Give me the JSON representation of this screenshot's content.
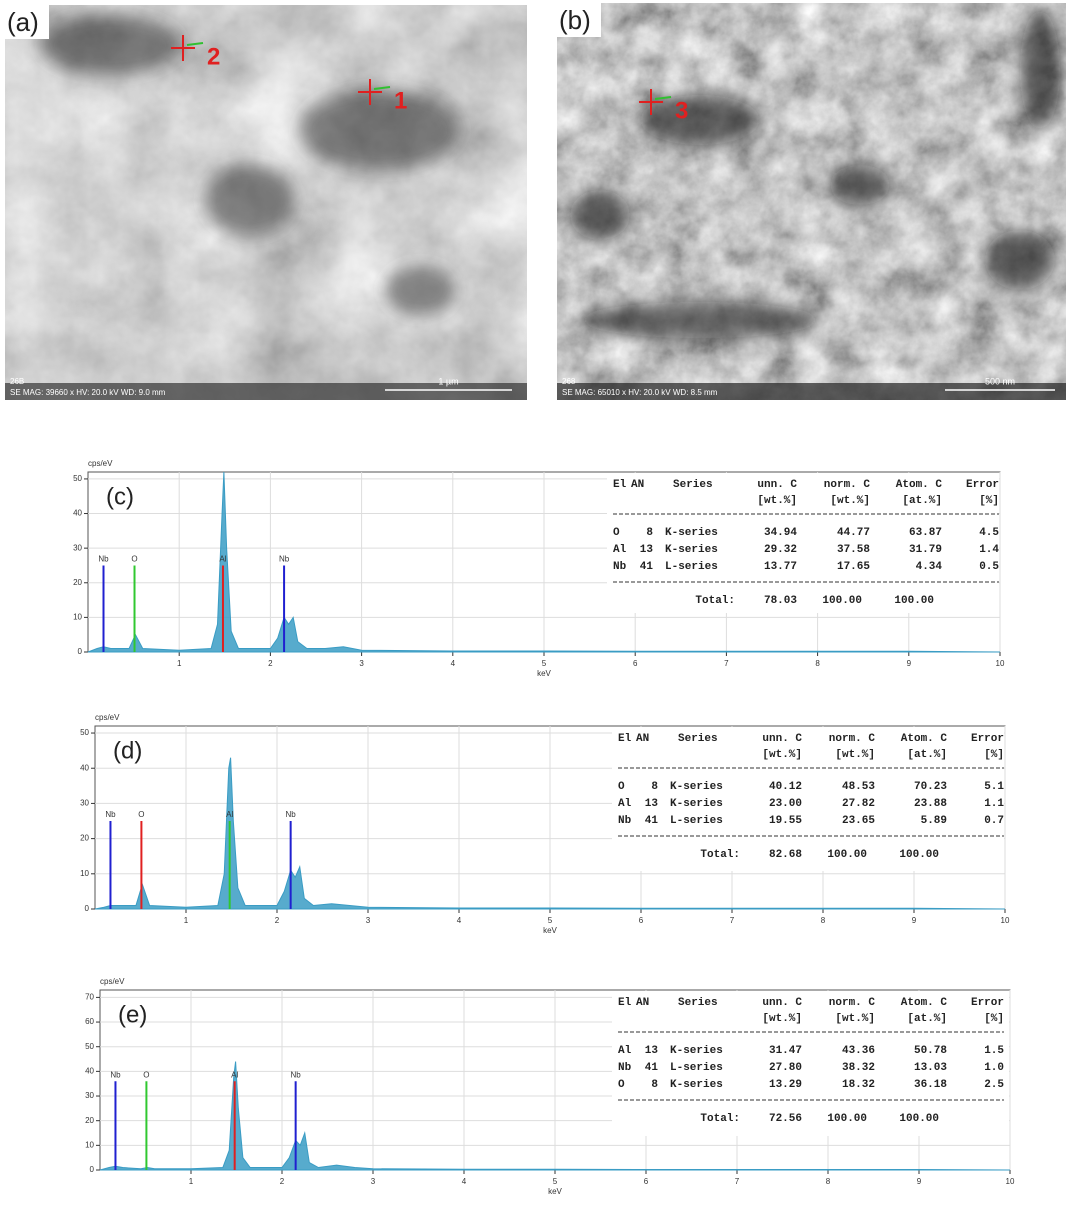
{
  "images": [
    {
      "label": "(a)",
      "points": [
        "2",
        "1"
      ],
      "scale": "1 µm",
      "code": "26B",
      "info": "SE MAG: 39660 x HV: 20.0 kV WD: 9.0 mm"
    },
    {
      "label": "(b)",
      "points": [
        "3"
      ],
      "scale": "500 nm",
      "code": "268",
      "info": "SE MAG: 65010 x HV: 20.0 kV WD: 8.5 mm"
    }
  ],
  "chart_data": [
    {
      "type": "spectrum",
      "label": "(c)",
      "y_label": "cps/eV",
      "x_label": "keV",
      "color": "#3a9cc4",
      "xlim": [
        0,
        10
      ],
      "xticks": [
        1,
        2,
        3,
        4,
        5,
        6,
        7,
        8,
        9,
        10
      ],
      "ylim": [
        0,
        52
      ],
      "yticks": [
        0,
        10,
        20,
        30,
        40,
        50
      ],
      "grid": true,
      "x": [
        0,
        0.1,
        0.17,
        0.25,
        0.45,
        0.52,
        0.6,
        1.0,
        1.35,
        1.42,
        1.47,
        1.49,
        1.52,
        1.57,
        1.65,
        2.0,
        2.08,
        2.15,
        2.2,
        2.25,
        2.3,
        2.4,
        2.6,
        2.8,
        3.0,
        4,
        5,
        6,
        7,
        8,
        9,
        10
      ],
      "values": [
        0,
        1,
        1.5,
        1,
        1,
        5,
        1,
        0.5,
        1,
        8,
        40,
        52,
        30,
        6,
        1,
        1,
        4,
        10,
        8,
        10,
        3,
        1,
        1,
        1.5,
        0.5,
        0.3,
        0.3,
        0.2,
        0.2,
        0.2,
        0.2,
        0
      ],
      "markers": [
        {
          "label": "Nb",
          "x": 0.17,
          "value": 25,
          "color": "#2020d0"
        },
        {
          "label": "O",
          "x": 0.51,
          "value": 25,
          "color": "#30c830"
        },
        {
          "label": "Al",
          "x": 1.48,
          "value": 25,
          "color": "#e02020"
        },
        {
          "label": "Nb",
          "x": 2.15,
          "value": 25,
          "color": "#2020d0"
        }
      ],
      "table": {
        "header": [
          "El",
          "AN",
          "Series",
          "unn. C",
          "norm. C",
          "Atom. C",
          "Error"
        ],
        "units": [
          "[wt.%]",
          "[wt.%]",
          "[at.%]",
          "[%]"
        ],
        "rows": [
          [
            "O",
            "8",
            "K-series",
            "34.94",
            "44.77",
            "63.87",
            "4.5"
          ],
          [
            "Al",
            "13",
            "K-series",
            "29.32",
            "37.58",
            "31.79",
            "1.4"
          ],
          [
            "Nb",
            "41",
            "L-series",
            "13.77",
            "17.65",
            "4.34",
            "0.5"
          ]
        ],
        "total_label": "Total:",
        "total": [
          "78.03",
          "100.00",
          "100.00"
        ]
      }
    },
    {
      "type": "spectrum",
      "label": "(d)",
      "y_label": "cps/eV",
      "x_label": "keV",
      "color": "#3a9cc4",
      "xlim": [
        0,
        10
      ],
      "xticks": [
        1,
        2,
        3,
        4,
        5,
        6,
        7,
        8,
        9,
        10
      ],
      "ylim": [
        0,
        52
      ],
      "yticks": [
        0,
        10,
        20,
        30,
        40,
        50
      ],
      "grid": true,
      "x": [
        0,
        0.1,
        0.17,
        0.25,
        0.45,
        0.52,
        0.6,
        1.0,
        1.35,
        1.42,
        1.47,
        1.49,
        1.52,
        1.57,
        1.65,
        2.0,
        2.08,
        2.15,
        2.2,
        2.25,
        2.3,
        2.4,
        2.6,
        2.8,
        3.0,
        4,
        5,
        6,
        7,
        8,
        9,
        10
      ],
      "values": [
        0,
        0.5,
        1,
        1,
        1,
        7,
        1,
        0.5,
        1,
        10,
        40,
        43,
        25,
        6,
        1,
        1,
        5,
        11,
        9,
        12,
        3,
        1,
        1.5,
        1,
        0.5,
        0.3,
        0.3,
        0.2,
        0.2,
        0.2,
        0.2,
        0
      ],
      "markers": [
        {
          "label": "Nb",
          "x": 0.17,
          "value": 25,
          "color": "#2020d0"
        },
        {
          "label": "O",
          "x": 0.51,
          "value": 25,
          "color": "#e02020"
        },
        {
          "label": "Al",
          "x": 1.48,
          "value": 25,
          "color": "#30c830"
        },
        {
          "label": "Nb",
          "x": 2.15,
          "value": 25,
          "color": "#2020d0"
        }
      ],
      "table": {
        "header": [
          "El",
          "AN",
          "Series",
          "unn. C",
          "norm. C",
          "Atom. C",
          "Error"
        ],
        "units": [
          "[wt.%]",
          "[wt.%]",
          "[at.%]",
          "[%]"
        ],
        "rows": [
          [
            "O",
            "8",
            "K-series",
            "40.12",
            "48.53",
            "70.23",
            "5.1"
          ],
          [
            "Al",
            "13",
            "K-series",
            "23.00",
            "27.82",
            "23.88",
            "1.1"
          ],
          [
            "Nb",
            "41",
            "L-series",
            "19.55",
            "23.65",
            "5.89",
            "0.7"
          ]
        ],
        "total_label": "Total:",
        "total": [
          "82.68",
          "100.00",
          "100.00"
        ]
      }
    },
    {
      "type": "spectrum",
      "label": "(e)",
      "y_label": "cps/eV",
      "x_label": "keV",
      "color": "#3a9cc4",
      "xlim": [
        0,
        10
      ],
      "xticks": [
        1,
        2,
        3,
        4,
        5,
        6,
        7,
        8,
        9,
        10
      ],
      "ylim": [
        0,
        73
      ],
      "yticks": [
        0,
        10,
        20,
        30,
        40,
        50,
        60,
        70
      ],
      "grid": true,
      "x": [
        0,
        0.1,
        0.17,
        0.25,
        0.45,
        0.52,
        0.6,
        1.0,
        1.35,
        1.42,
        1.47,
        1.49,
        1.52,
        1.57,
        1.65,
        2.0,
        2.08,
        2.15,
        2.2,
        2.25,
        2.3,
        2.4,
        2.6,
        2.8,
        3.0,
        4,
        5,
        6,
        7,
        8,
        9,
        10
      ],
      "values": [
        0,
        1,
        1.5,
        1,
        0.5,
        1,
        0.5,
        0.5,
        1,
        8,
        38,
        44,
        25,
        5,
        1,
        1,
        5,
        12,
        10,
        15,
        3,
        1,
        2,
        1,
        0.5,
        0.3,
        0.3,
        0.2,
        0.2,
        0.2,
        0.2,
        0
      ],
      "markers": [
        {
          "label": "Nb",
          "x": 0.17,
          "value": 36,
          "color": "#2020d0"
        },
        {
          "label": "O",
          "x": 0.51,
          "value": 36,
          "color": "#30c830"
        },
        {
          "label": "Al",
          "x": 1.48,
          "value": 36,
          "color": "#e02020"
        },
        {
          "label": "Nb",
          "x": 2.15,
          "value": 36,
          "color": "#2020d0"
        }
      ],
      "table": {
        "header": [
          "El",
          "AN",
          "Series",
          "unn. C",
          "norm. C",
          "Atom. C",
          "Error"
        ],
        "units": [
          "[wt.%]",
          "[wt.%]",
          "[at.%]",
          "[%]"
        ],
        "rows": [
          [
            "Al",
            "13",
            "K-series",
            "31.47",
            "43.36",
            "50.78",
            "1.5"
          ],
          [
            "Nb",
            "41",
            "L-series",
            "27.80",
            "38.32",
            "13.03",
            "1.0"
          ],
          [
            "O",
            "8",
            "K-series",
            "13.29",
            "18.32",
            "36.18",
            "2.5"
          ]
        ],
        "total_label": "Total:",
        "total": [
          "72.56",
          "100.00",
          "100.00"
        ]
      }
    }
  ]
}
